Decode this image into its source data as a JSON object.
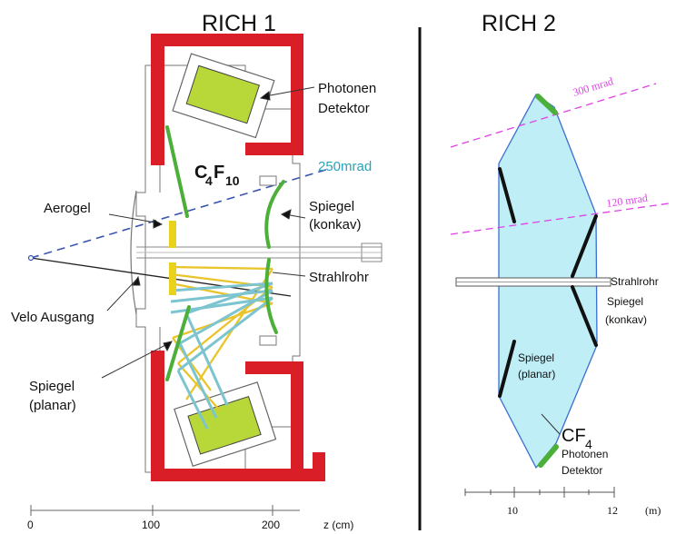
{
  "rich1": {
    "title": "RICH 1",
    "chem": {
      "main": "C",
      "sub1": "4",
      "mid": "F",
      "sub2": "10"
    },
    "labels": {
      "photonen": "Photonen",
      "detektor": "Detektor",
      "mrad": "250mrad",
      "spiegel_k": "Spiegel",
      "konkav": "(konkav)",
      "aerogel": "Aerogel",
      "strahlrohr": "Strahlrohr",
      "velo": "Velo Ausgang",
      "spiegel_p": "Spiegel",
      "planar": "(planar)"
    },
    "axis": {
      "ticks": [
        "0",
        "100",
        "200"
      ],
      "unit": "z  (cm)"
    }
  },
  "rich2": {
    "title": "RICH 2",
    "labels": {
      "mrad300": "300  mrad",
      "mrad120": "120  mrad",
      "strahlrohr": "Strahlrohr",
      "spiegel_k": "Spiegel",
      "konkav": "(konkav)",
      "spiegel_p": "Spiegel",
      "planar": "(planar)",
      "photonen": "Photonen",
      "detektor": "Detektor"
    },
    "chem": {
      "main": "CF",
      "sub": "4"
    },
    "axis": {
      "ticks": [
        "10",
        "12"
      ],
      "unit": "(m)"
    }
  },
  "colors": {
    "housing": "#d91e28",
    "mirror": "#4caf3a",
    "aerogel": "#e8d21c",
    "ray_yellow": "#e9c42b",
    "ray_cyan": "#7cc4cf",
    "mrad_blue": "#3a56b0",
    "mrad_label": "#2aa3b8",
    "rich2_fill": "#bfeef6",
    "rich2_edge": "#3a6fd0",
    "mrad_magenta": "#e040e8",
    "detector_fill": "#b8d83a"
  }
}
